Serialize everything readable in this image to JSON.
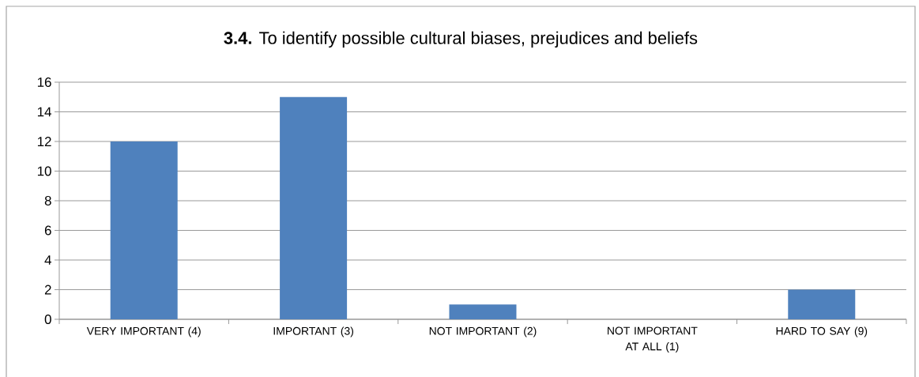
{
  "chart_data": {
    "type": "bar",
    "title": "**3.4.** To identify possible cultural biases, prejudices and beliefs",
    "categories": [
      "VERY IMPORTANT (4)",
      "IMPORTANT (3)",
      "NOT IMPORTANT (2)",
      "NOT IMPORTANT AT ALL (1)",
      "HARD TO SAY (9)"
    ],
    "values": [
      12,
      15,
      1,
      0,
      2
    ],
    "color": "#4f81bd",
    "ylim": [
      0,
      16
    ],
    "yticks": [
      0,
      2,
      4,
      6,
      8,
      10,
      12,
      14,
      16
    ],
    "grid": "y"
  }
}
